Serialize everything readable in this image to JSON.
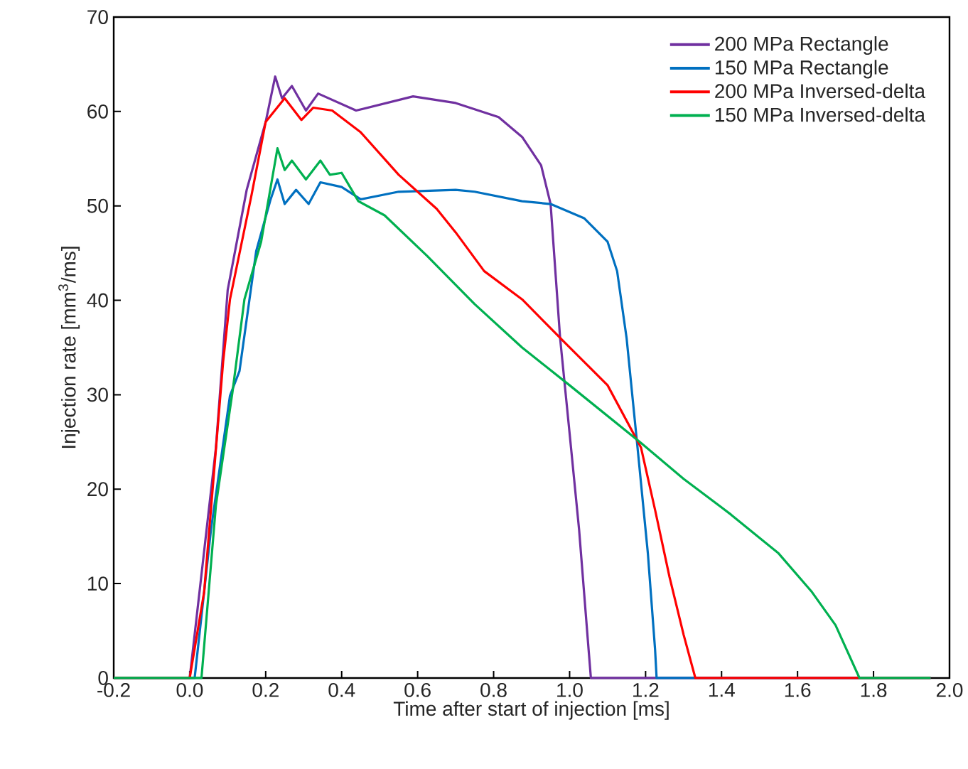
{
  "chart_data": {
    "type": "line",
    "xlabel": "Time after start of injection [ms]",
    "ylabel": "Injection rate [mm$^{3}$/ms]",
    "xlim": [
      -0.2,
      2.0
    ],
    "ylim": [
      0,
      70
    ],
    "xticks": [
      -0.2,
      {
        "value": 0,
        "label": "0.0"
      },
      0.2,
      0.4,
      0.6,
      0.8,
      {
        "value": 1,
        "label": "1.0"
      },
      1.2,
      1.4,
      1.6,
      1.8,
      {
        "value": 2,
        "label": "2.0"
      }
    ],
    "yticks": [
      0,
      10,
      20,
      30,
      40,
      50,
      60,
      70
    ],
    "grid": false,
    "legend": "top right",
    "marker": "none",
    "line_style": "solid",
    "series": [
      {
        "name": "200 MPa Rectangle",
        "color": "#7030a0",
        "x": [
          -0.2,
          0.0,
          0.069,
          0.1,
          0.15,
          0.2,
          0.225,
          0.243,
          0.269,
          0.306,
          0.338,
          0.438,
          0.588,
          0.7,
          0.813,
          0.875,
          0.925,
          0.95,
          0.975,
          1.0,
          1.025,
          1.05,
          1.056,
          1.95
        ],
        "values": [
          0,
          0,
          24.4,
          41.1,
          51.7,
          58.9,
          63.7,
          61.4,
          62.7,
          60.1,
          61.9,
          60.1,
          61.6,
          60.9,
          59.4,
          57.3,
          54.3,
          50.2,
          36.0,
          25.9,
          15.7,
          3.0,
          0,
          0
        ]
      },
      {
        "name": "150 MPa Rectangle",
        "color": "#0070c0",
        "x": [
          -0.2,
          0.013,
          0.056,
          0.106,
          0.131,
          0.175,
          0.213,
          0.231,
          0.25,
          0.28,
          0.313,
          0.344,
          0.4,
          0.45,
          0.55,
          0.7,
          0.75,
          0.875,
          0.95,
          1.038,
          1.1,
          1.125,
          1.15,
          1.18,
          1.206,
          1.225,
          1.229,
          1.95
        ],
        "values": [
          0,
          0,
          15.7,
          29.9,
          32.5,
          45.2,
          50.7,
          52.8,
          50.2,
          51.7,
          50.2,
          52.5,
          52.0,
          50.7,
          51.5,
          51.7,
          51.5,
          50.5,
          50.2,
          48.7,
          46.2,
          43.1,
          36.0,
          23.9,
          13.2,
          3.0,
          0,
          0
        ]
      },
      {
        "name": "200 MPa Inversed-delta",
        "color": "#ff0000",
        "x": [
          -0.2,
          0.0,
          0.038,
          0.088,
          0.106,
          0.163,
          0.2,
          0.25,
          0.294,
          0.325,
          0.375,
          0.45,
          0.55,
          0.65,
          0.7,
          0.775,
          0.875,
          0.988,
          1.1,
          1.188,
          1.225,
          1.263,
          1.3,
          1.331,
          1.95
        ],
        "values": [
          0,
          0,
          9.1,
          33.5,
          40.1,
          51.2,
          58.9,
          61.4,
          59.1,
          60.4,
          60.1,
          57.8,
          53.3,
          49.7,
          47.2,
          43.1,
          40.1,
          35.5,
          31.0,
          24.4,
          17.8,
          10.7,
          4.6,
          0,
          0
        ]
      },
      {
        "name": "150 MPa Inversed-delta",
        "color": "#00b050",
        "x": [
          -0.2,
          0.031,
          0.069,
          0.113,
          0.144,
          0.188,
          0.231,
          0.25,
          0.269,
          0.306,
          0.344,
          0.369,
          0.4,
          0.444,
          0.513,
          0.625,
          0.75,
          0.875,
          1.0,
          1.188,
          1.3,
          1.425,
          1.55,
          1.638,
          1.7,
          1.763,
          1.95
        ],
        "values": [
          0,
          0,
          18.3,
          30.4,
          40.1,
          46.2,
          56.1,
          53.8,
          54.8,
          52.8,
          54.8,
          53.3,
          53.5,
          50.5,
          49.0,
          44.7,
          39.6,
          35.0,
          31.0,
          24.9,
          21.1,
          17.3,
          13.2,
          9.1,
          5.6,
          0,
          0
        ]
      }
    ]
  }
}
